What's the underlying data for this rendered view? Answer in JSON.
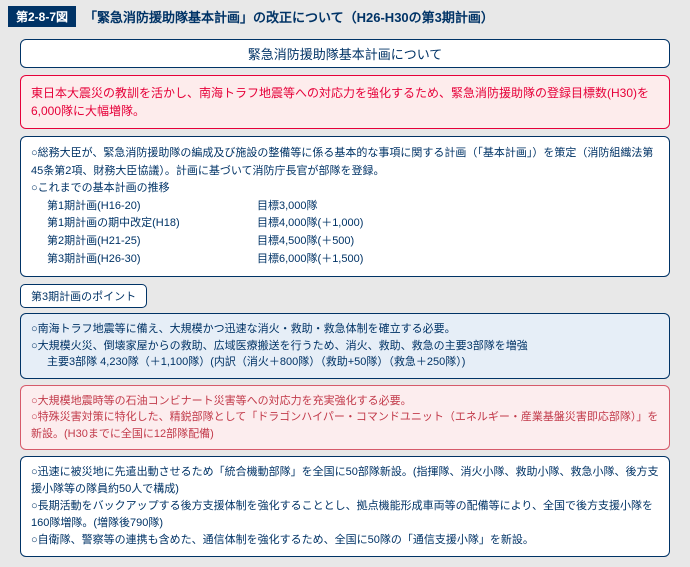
{
  "header": {
    "badge": "第2-8-7図",
    "title": "「緊急消防援助隊基本計画」の改正について（H26-H30の第3期計画）"
  },
  "title_box": "緊急消防援助隊基本計画について",
  "red_box": "東日本大震災の教訓を活かし、南海トラフ地震等への対応力を強化するため、緊急消防援助隊の登録目標数(H30)を6,000隊に大幅増隊。",
  "main_box": {
    "l1": "○総務大臣が、緊急消防援助隊の編成及び施設の整備等に係る基本的な事項に関する計画（「基本計画」）を策定（消防組織法第45条第2項、財務大臣協議）。計画に基づいて消防庁長官が部隊を登録。",
    "l2": "○これまでの基本計画の推移",
    "rows": [
      {
        "a": "第1期計画(H16-20)",
        "b": "目標3,000隊"
      },
      {
        "a": "第1期計画の期中改定(H18)",
        "b": "目標4,000隊(＋1,000)"
      },
      {
        "a": "第2期計画(H21-25)",
        "b": "目標4,500隊(＋500)"
      },
      {
        "a": "第3期計画(H26-30)",
        "b": "目標6,000隊(＋1,500)"
      }
    ]
  },
  "point_label": "第3期計画のポイント",
  "blue_box": {
    "l1": "○南海トラフ地震等に備え、大規模かつ迅速な消火・救助・救急体制を確立する必要。",
    "l2": "○大規模火災、倒壊家屋からの救助、広域医療搬送を行うため、消火、救助、救急の主要3部隊を増強",
    "l3": "主要3部隊 4,230隊（＋1,100隊）(内訳（消火＋800隊）（救助+50隊）（救急＋250隊）)"
  },
  "pink_box": {
    "l1": "○大規模地震時等の石油コンビナート災害等への対応力を充実強化する必要。",
    "l2": "○特殊災害対策に特化した、精鋭部隊として「ドラゴンハイパー・コマンドユニット（エネルギー・産業基盤災害即応部隊）」を新設。(H30までに全国に12部隊配備)"
  },
  "white_box": {
    "l1": "○迅速に被災地に先遣出動させるため「統合機動部隊」を全国に50部隊新設。(指揮隊、消火小隊、救助小隊、救急小隊、後方支援小隊等の隊員約50人で構成)",
    "l2": "○長期活動をバックアップする後方支援体制を強化することとし、拠点機能形成車両等の配備等により、全国で後方支援小隊を160隊増隊。(増隊後790隊)",
    "l3": "○自衛隊、警察等の連携も含めた、通信体制を強化するため、全国に50隊の「通信支援小隊」を新設。"
  }
}
